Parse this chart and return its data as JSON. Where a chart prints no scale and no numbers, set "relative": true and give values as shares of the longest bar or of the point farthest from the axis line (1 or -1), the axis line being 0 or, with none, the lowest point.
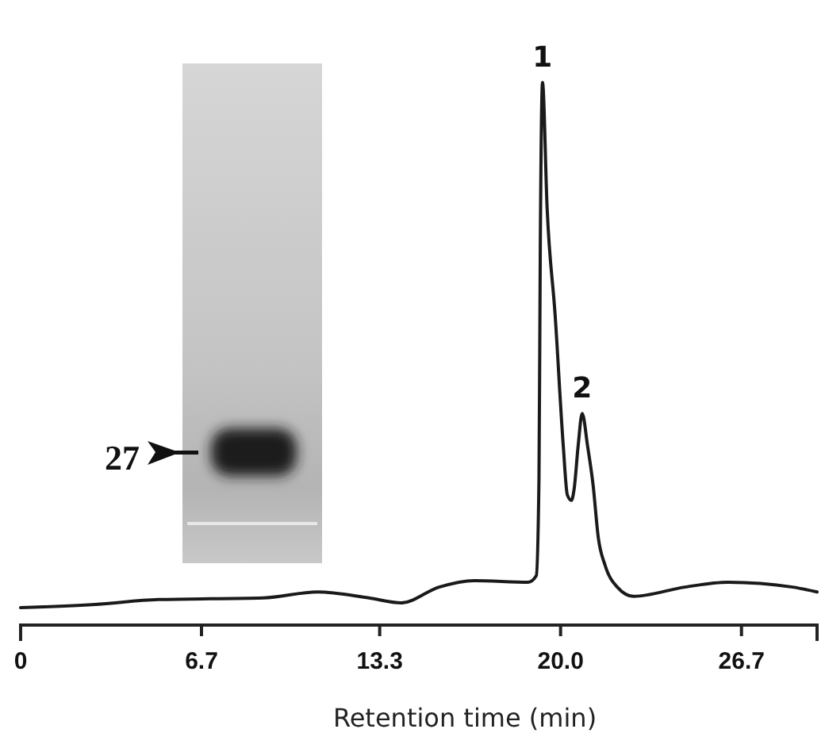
{
  "chart_data": {
    "type": "line",
    "relative": true,
    "xlabel": "Retention time (min)",
    "x": [
      0,
      2.76,
      5.1,
      9.0,
      11.0,
      12.9,
      14.1,
      15.5,
      16.8,
      18.8,
      19.1,
      19.2,
      19.25,
      19.33,
      19.5,
      19.8,
      20.1,
      20.25,
      20.4,
      20.5,
      20.65,
      20.8,
      21.0,
      21.2,
      21.4,
      21.65,
      22.1,
      22.7,
      24.6,
      26.2,
      28.6,
      29.5
    ],
    "values": [
      0.032,
      0.038,
      0.047,
      0.05,
      0.061,
      0.05,
      0.041,
      0.07,
      0.082,
      0.079,
      0.091,
      0.27,
      0.71,
      1.0,
      0.77,
      0.57,
      0.33,
      0.24,
      0.23,
      0.25,
      0.33,
      0.39,
      0.33,
      0.26,
      0.16,
      0.11,
      0.07,
      0.053,
      0.07,
      0.079,
      0.07,
      0.061
    ],
    "color": "#1a1a1a",
    "xlim": [
      0,
      29.5
    ],
    "xticks": [
      0,
      6.7,
      13.3,
      {
        "value": 20,
        "label": "20.0"
      },
      26.7
    ],
    "annotations": [
      {
        "text": "1",
        "x": 19.33,
        "y": 1.0
      },
      {
        "text": "2",
        "x": 20.8,
        "y": 0.39
      },
      "27"
    ]
  }
}
